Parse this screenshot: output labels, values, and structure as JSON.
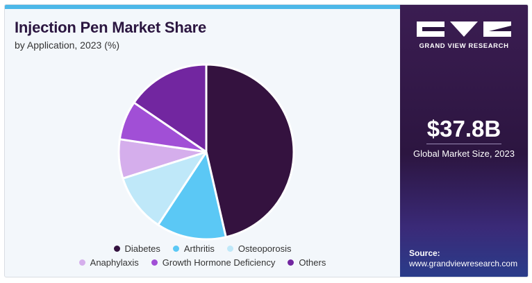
{
  "header": {
    "title": "Injection Pen Market Share",
    "subtitle": "by Application, 2023 (%)"
  },
  "chart_data": {
    "type": "pie",
    "title": "Injection Pen Market Share",
    "subtitle": "by Application, 2023 (%)",
    "categories": [
      "Diabetes",
      "Arthritis",
      "Osteoporosis",
      "Anaphylaxis",
      "Growth Hormone Deficiency",
      "Others"
    ],
    "values": [
      45,
      12.5,
      10.5,
      7,
      7,
      15
    ],
    "colors": [
      "#34123f",
      "#5bc8f5",
      "#bfe8f9",
      "#d5aeec",
      "#a14fd6",
      "#7226a0"
    ],
    "legend_position": "bottom"
  },
  "legend": {
    "items": [
      {
        "label": "Diabetes",
        "color": "#34123f"
      },
      {
        "label": "Arthritis",
        "color": "#5bc8f5"
      },
      {
        "label": "Osteoporosis",
        "color": "#bfe8f9"
      },
      {
        "label": "Anaphylaxis",
        "color": "#d5aeec"
      },
      {
        "label": "Growth Hormone Deficiency",
        "color": "#a14fd6"
      },
      {
        "label": "Others",
        "color": "#7226a0"
      }
    ]
  },
  "sidebar": {
    "brand": "GRAND VIEW RESEARCH",
    "market_size": "$37.8B",
    "market_size_caption": "Global Market Size, 2023",
    "source_label": "Source:",
    "source_url": "www.grandviewresearch.com"
  },
  "colors": {
    "accent_bar": "#4db8e8",
    "title": "#2b1640",
    "panel": "#2c1540"
  }
}
